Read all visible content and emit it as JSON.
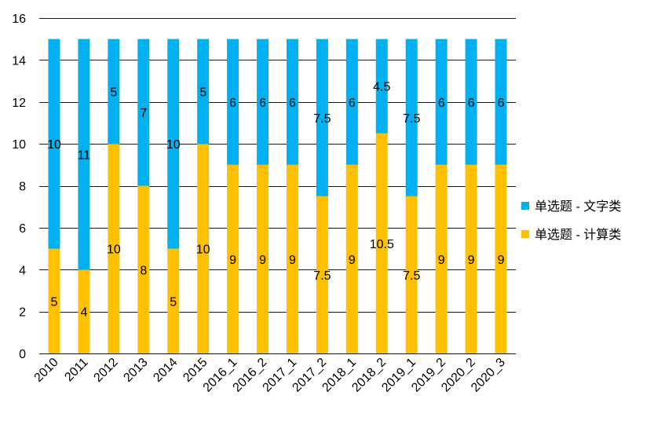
{
  "chart_data": {
    "type": "bar",
    "stacked": true,
    "categories": [
      "2010",
      "2011",
      "2012",
      "2013",
      "2014",
      "2015",
      "2016_1",
      "2016_2",
      "2017_1",
      "2017_2",
      "2018_1",
      "2018_2",
      "2019_1",
      "2019_2",
      "2020_2",
      "2020_3"
    ],
    "series": [
      {
        "name": "单选题 - 计算类",
        "color": "#FFC000",
        "values": [
          5,
          4,
          10,
          8,
          5,
          10,
          9,
          9,
          9,
          7.5,
          9,
          10.5,
          7.5,
          9,
          9,
          9
        ]
      },
      {
        "name": "单选题 - 文字类",
        "color": "#00B0F0",
        "values": [
          10,
          11,
          5,
          7,
          10,
          5,
          6,
          6,
          6,
          7.5,
          6,
          4.5,
          7.5,
          6,
          6,
          6
        ]
      }
    ],
    "yticks": [
      0,
      2,
      4,
      6,
      8,
      10,
      12,
      14,
      16
    ],
    "ylim": [
      0,
      16
    ],
    "grid": true,
    "data_labels": true,
    "legend": {
      "position": "right",
      "order": [
        1,
        0
      ]
    }
  }
}
